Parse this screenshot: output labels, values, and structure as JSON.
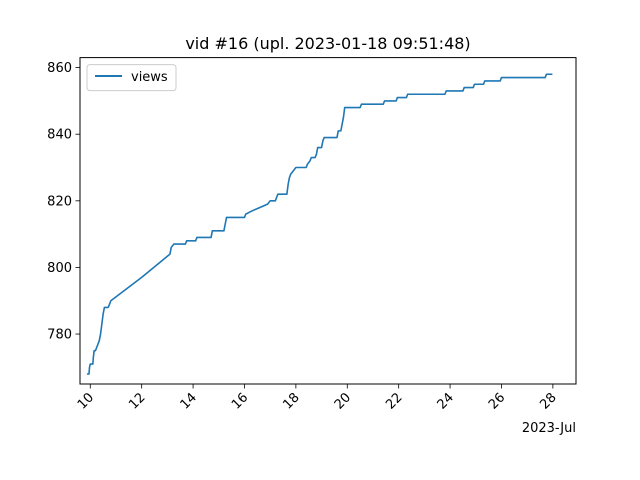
{
  "chart_data": {
    "type": "line",
    "title": "vid #16 (upl. 2023-01-18 09:51:48)",
    "xlabel": "",
    "ylabel": "",
    "x_offset_label": "2023-Jul",
    "xlim": [
      9.6,
      28.9
    ],
    "ylim": [
      765,
      863
    ],
    "x_ticks": [
      10,
      12,
      14,
      16,
      18,
      20,
      22,
      24,
      26,
      28
    ],
    "y_ticks": [
      780,
      800,
      820,
      840,
      860
    ],
    "x_unit": "day of July 2023",
    "grid": false,
    "legend_position": "top-left",
    "series": [
      {
        "name": "views",
        "color": "#1f77b4",
        "points": [
          [
            9.9,
            768
          ],
          [
            9.95,
            768
          ],
          [
            9.97,
            770
          ],
          [
            10.0,
            771
          ],
          [
            10.1,
            771
          ],
          [
            10.12,
            773
          ],
          [
            10.15,
            775
          ],
          [
            10.2,
            775
          ],
          [
            10.25,
            776
          ],
          [
            10.3,
            777
          ],
          [
            10.35,
            778
          ],
          [
            10.4,
            780
          ],
          [
            10.45,
            783
          ],
          [
            10.5,
            786
          ],
          [
            10.55,
            788
          ],
          [
            10.7,
            788
          ],
          [
            10.75,
            789
          ],
          [
            10.8,
            790
          ],
          [
            12.0,
            797
          ],
          [
            13.1,
            804
          ],
          [
            13.15,
            806
          ],
          [
            13.25,
            807
          ],
          [
            13.7,
            807
          ],
          [
            13.75,
            808
          ],
          [
            14.1,
            808
          ],
          [
            14.15,
            809
          ],
          [
            14.7,
            809
          ],
          [
            14.75,
            811
          ],
          [
            15.2,
            811
          ],
          [
            15.25,
            813
          ],
          [
            15.3,
            815
          ],
          [
            16.0,
            815
          ],
          [
            16.05,
            816
          ],
          [
            16.3,
            817
          ],
          [
            16.6,
            818
          ],
          [
            16.9,
            819
          ],
          [
            17.0,
            820
          ],
          [
            17.2,
            820
          ],
          [
            17.25,
            821
          ],
          [
            17.3,
            822
          ],
          [
            17.65,
            822
          ],
          [
            17.7,
            825
          ],
          [
            17.75,
            827
          ],
          [
            17.8,
            828
          ],
          [
            17.9,
            829
          ],
          [
            18.0,
            830
          ],
          [
            18.4,
            830
          ],
          [
            18.45,
            831
          ],
          [
            18.55,
            832
          ],
          [
            18.6,
            833
          ],
          [
            18.75,
            833
          ],
          [
            18.8,
            834
          ],
          [
            18.85,
            836
          ],
          [
            19.0,
            836
          ],
          [
            19.05,
            838
          ],
          [
            19.1,
            839
          ],
          [
            19.6,
            839
          ],
          [
            19.65,
            841
          ],
          [
            19.75,
            841
          ],
          [
            19.8,
            843
          ],
          [
            19.85,
            845
          ],
          [
            19.9,
            848
          ],
          [
            20.5,
            848
          ],
          [
            20.55,
            849
          ],
          [
            21.4,
            849
          ],
          [
            21.45,
            850
          ],
          [
            21.9,
            850
          ],
          [
            21.95,
            851
          ],
          [
            22.3,
            851
          ],
          [
            22.35,
            852
          ],
          [
            23.8,
            852
          ],
          [
            23.85,
            853
          ],
          [
            24.5,
            853
          ],
          [
            24.55,
            854
          ],
          [
            24.9,
            854
          ],
          [
            24.95,
            855
          ],
          [
            25.3,
            855
          ],
          [
            25.35,
            856
          ],
          [
            25.95,
            856
          ],
          [
            26.0,
            857
          ],
          [
            27.7,
            857
          ],
          [
            27.75,
            858
          ],
          [
            27.95,
            858
          ]
        ]
      }
    ]
  }
}
